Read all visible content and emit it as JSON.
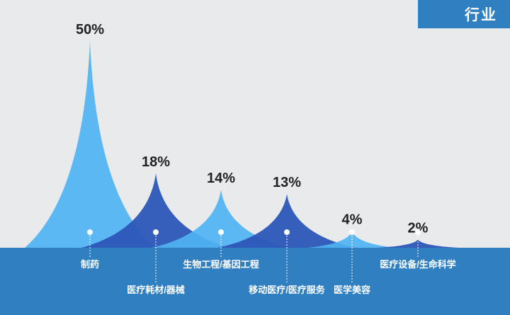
{
  "tag": {
    "label": "行业"
  },
  "colors": {
    "background": "#e9eaec",
    "base_band": "#2f7fc1",
    "light_peak": "#4fb3f2",
    "dark_peak": "#2c56b8",
    "dashed_line": "#ffffff"
  },
  "chart_data": {
    "type": "area",
    "title": "",
    "xlabel": "",
    "ylabel": "",
    "ylim": [
      0,
      50
    ],
    "categories": [
      "制药",
      "医疗耗材/器械",
      "生物工程/基因工程",
      "移动医疗/医疗服务",
      "医学美容",
      "医疗设备/生命科学"
    ],
    "values": [
      50,
      18,
      14,
      13,
      4,
      2
    ],
    "data_labels": [
      "50%",
      "18%",
      "14%",
      "13%",
      "4%",
      "2%"
    ],
    "label_rows": [
      0,
      1,
      0,
      1,
      1,
      0
    ]
  }
}
